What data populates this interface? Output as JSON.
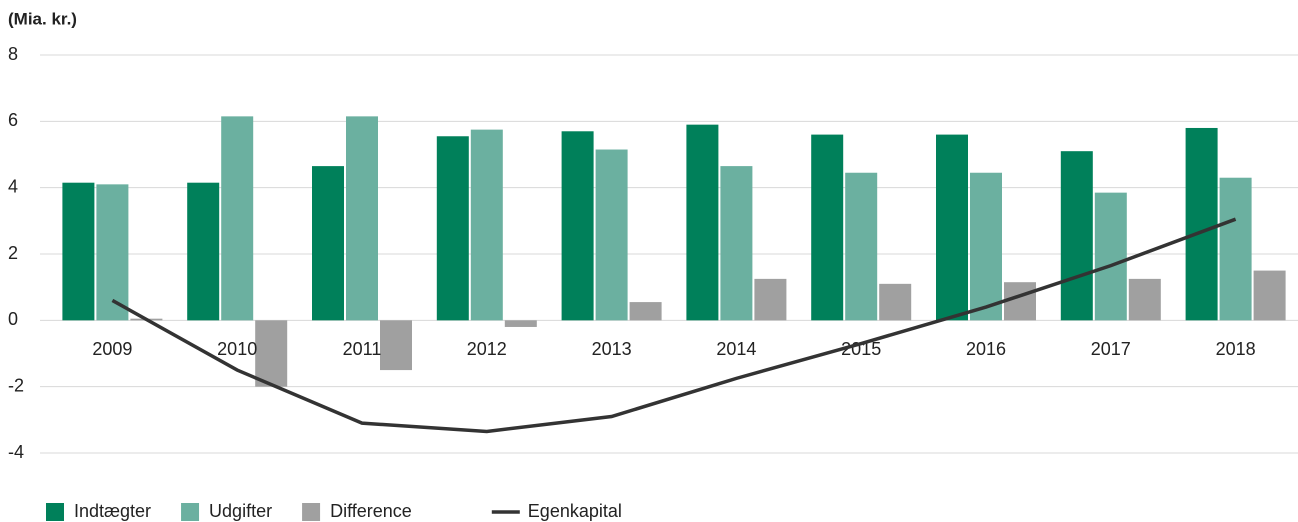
{
  "chart_data": {
    "type": "bar",
    "y_label": "(Mia. kr.)",
    "categories": [
      "2009",
      "2010",
      "2011",
      "2012",
      "2013",
      "2014",
      "2015",
      "2016",
      "2017",
      "2018"
    ],
    "series": [
      {
        "name": "Indtægter",
        "color": "#00805a",
        "values": [
          4.15,
          4.15,
          4.65,
          5.55,
          5.7,
          5.9,
          5.6,
          5.6,
          5.1,
          5.8
        ]
      },
      {
        "name": "Udgifter",
        "color": "#6bb0a0",
        "values": [
          4.1,
          6.15,
          6.15,
          5.75,
          5.15,
          4.65,
          4.45,
          4.45,
          3.85,
          4.3
        ]
      },
      {
        "name": "Difference",
        "color": "#a0a0a0",
        "values": [
          0.05,
          -2.0,
          -1.5,
          -0.2,
          0.55,
          1.25,
          1.1,
          1.15,
          1.25,
          1.5
        ]
      },
      {
        "name": "Egenkapital",
        "type": "line",
        "color": "#333333",
        "values": [
          0.6,
          -1.5,
          -3.1,
          -3.35,
          -2.9,
          -1.75,
          -0.7,
          0.4,
          1.65,
          3.05
        ]
      }
    ],
    "ylim": [
      -4,
      8
    ],
    "yticks": [
      -4,
      -2,
      0,
      2,
      4,
      6,
      8
    ],
    "grid": true,
    "legend": "bottom"
  }
}
